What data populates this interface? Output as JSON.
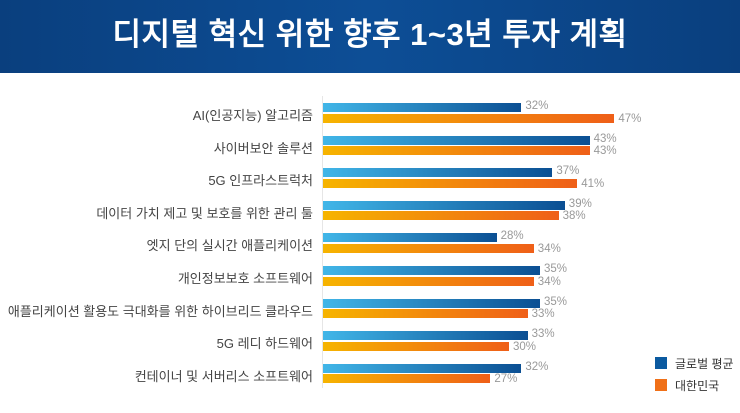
{
  "title": "디지털 혁신 위한 향후 1~3년 투자 계획",
  "chart_data": {
    "type": "bar",
    "orientation": "horizontal",
    "title": "디지털 혁신 위한 향후 1~3년 투자 계획",
    "categories": [
      "AI(인공지능) 알고리즘",
      "사이버보안 솔루션",
      "5G 인프라스트럭처",
      "데이터 가치 제고 및 보호를 위한 관리 툴",
      "엣지 단의 실시간 애플리케이션",
      "개인정보보호 소프트웨어",
      "애플리케이션 활용도 극대화를 위한 하이브리드 클라우드",
      "5G 레디 하드웨어",
      "컨테이너 및 서버리스 소프트웨어"
    ],
    "series": [
      {
        "name": "글로벌 평균",
        "color": "#0b5aa0",
        "values": [
          32,
          43,
          37,
          39,
          28,
          35,
          35,
          33,
          32
        ]
      },
      {
        "name": "대한민국",
        "color": "#f07018",
        "values": [
          47,
          43,
          41,
          38,
          34,
          34,
          33,
          30,
          27
        ]
      }
    ],
    "unit": "%",
    "legend": "bottom-right",
    "grid": false
  }
}
